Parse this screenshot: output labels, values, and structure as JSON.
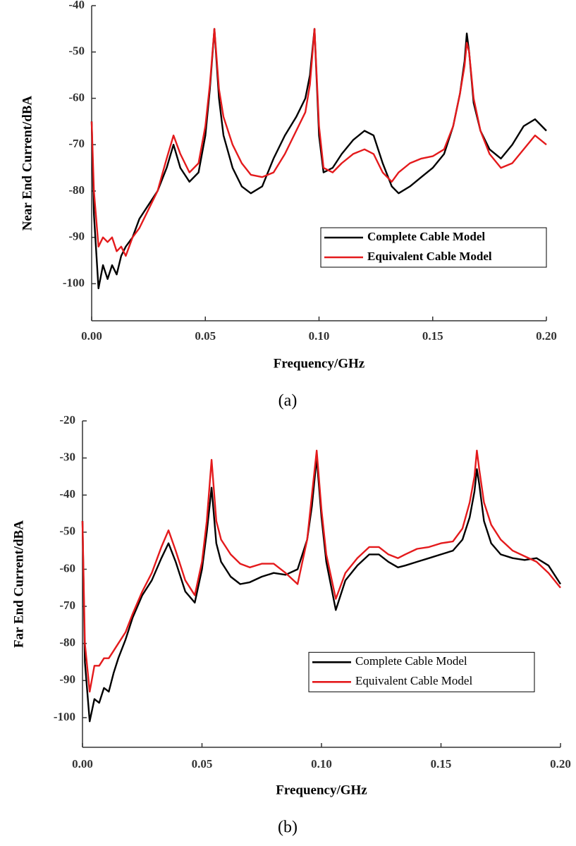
{
  "chart_data": [
    {
      "type": "line",
      "label": "(a)",
      "xlabel": "Frequency/GHz",
      "ylabel": "Near End Current/dBA",
      "x": [
        0,
        0.001,
        0.003,
        0.005,
        0.007,
        0.009,
        0.011,
        0.013,
        0.015,
        0.018,
        0.021,
        0.025,
        0.029,
        0.033,
        0.036,
        0.039,
        0.043,
        0.047,
        0.05,
        0.052,
        0.054,
        0.056,
        0.058,
        0.062,
        0.066,
        0.07,
        0.075,
        0.08,
        0.085,
        0.09,
        0.094,
        0.096,
        0.098,
        0.1,
        0.102,
        0.106,
        0.11,
        0.115,
        0.12,
        0.124,
        0.128,
        0.132,
        0.135,
        0.14,
        0.145,
        0.15,
        0.155,
        0.159,
        0.162,
        0.164,
        0.165,
        0.166,
        0.168,
        0.171,
        0.175,
        0.18,
        0.185,
        0.19,
        0.195,
        0.2
      ],
      "series": [
        {
          "name": "Complete Cable Model",
          "color": "#000000",
          "values": [
            -65,
            -85,
            -101,
            -96,
            -99,
            -96,
            -98,
            -94,
            -92,
            -90,
            -86,
            -83,
            -80,
            -75,
            -70,
            -75,
            -78,
            -76,
            -68,
            -58,
            -45,
            -60,
            -68,
            -75,
            -79,
            -80.5,
            -79,
            -73,
            -68,
            -64,
            -60,
            -55,
            -45,
            -68,
            -76,
            -75,
            -72,
            -69,
            -67,
            -68,
            -74,
            -79,
            -80.5,
            -79,
            -77,
            -75,
            -72,
            -66,
            -59,
            -52,
            -46,
            -50,
            -61,
            -67,
            -71,
            -73,
            -70,
            -66,
            -64.5,
            -67
          ]
        },
        {
          "name": "Equivalent Cable Model",
          "color": "#e41a1c",
          "values": [
            -65,
            -80,
            -92,
            -90,
            -91,
            -90,
            -93,
            -92,
            -94,
            -90,
            -88,
            -84,
            -80,
            -73,
            -68,
            -72,
            -76,
            -74,
            -66,
            -57,
            -45,
            -58,
            -64,
            -70,
            -74,
            -76.5,
            -77,
            -76,
            -72,
            -67,
            -63,
            -57,
            -45,
            -66,
            -75,
            -76,
            -74,
            -72,
            -71,
            -72,
            -76,
            -78,
            -76,
            -74,
            -73,
            -72.5,
            -71,
            -66,
            -59,
            -53,
            -48,
            -50,
            -60,
            -67,
            -72,
            -75,
            -74,
            -71,
            -68,
            -70
          ]
        }
      ],
      "xlim": [
        0,
        0.2
      ],
      "xticks": [
        {
          "value": 0,
          "label": "0.00"
        },
        0.05,
        {
          "value": 0.1,
          "label": "0.10"
        },
        0.15,
        {
          "value": 0.2,
          "label": "0.20"
        }
      ],
      "ylim": [
        -108,
        -40
      ],
      "yticks": [
        -40,
        -50,
        -60,
        -70,
        -80,
        -90,
        -100
      ],
      "legend": "lower right"
    },
    {
      "type": "line",
      "label": "(b)",
      "xlabel": "Frequency/GHz",
      "ylabel": "Far End Current/dBA",
      "x": [
        0,
        0.001,
        0.003,
        0.005,
        0.007,
        0.009,
        0.011,
        0.013,
        0.015,
        0.018,
        0.021,
        0.025,
        0.029,
        0.033,
        0.036,
        0.039,
        0.043,
        0.047,
        0.05,
        0.052,
        0.054,
        0.056,
        0.058,
        0.062,
        0.066,
        0.07,
        0.075,
        0.08,
        0.085,
        0.09,
        0.094,
        0.096,
        0.098,
        0.1,
        0.102,
        0.106,
        0.11,
        0.115,
        0.12,
        0.124,
        0.128,
        0.132,
        0.135,
        0.14,
        0.145,
        0.15,
        0.155,
        0.159,
        0.162,
        0.164,
        0.165,
        0.166,
        0.168,
        0.171,
        0.175,
        0.18,
        0.185,
        0.19,
        0.195,
        0.2
      ],
      "series": [
        {
          "name": "Complete Cable Model",
          "color": "#000000",
          "values": [
            -47,
            -85,
            -101,
            -95,
            -96,
            -92,
            -93,
            -88,
            -84,
            -79,
            -73,
            -67,
            -63,
            -57,
            -53,
            -58,
            -66,
            -69,
            -60,
            -50,
            -38,
            -53,
            -58,
            -62,
            -64,
            -63.5,
            -62,
            -61,
            -61.5,
            -60,
            -52,
            -43,
            -30,
            -46,
            -58,
            -71,
            -63,
            -59,
            -56,
            -56,
            -58,
            -59.5,
            -59,
            -58,
            -57,
            -56,
            -55,
            -52,
            -46,
            -39,
            -33,
            -37,
            -47,
            -53,
            -56,
            -57,
            -57.5,
            -57,
            -59,
            -64
          ]
        },
        {
          "name": "Equivalent Cable Model",
          "color": "#e41a1c",
          "values": [
            -47,
            -80,
            -93,
            -86,
            -86,
            -84,
            -84,
            -82,
            -80,
            -77,
            -72,
            -66,
            -61,
            -54,
            -49.5,
            -55,
            -63,
            -67,
            -58,
            -47,
            -30.5,
            -47,
            -52,
            -56,
            -58.5,
            -59.5,
            -58.5,
            -58.5,
            -61,
            -64,
            -52,
            -40,
            -28,
            -44,
            -56,
            -68,
            -61,
            -57,
            -54,
            -54,
            -56,
            -57,
            -56,
            -54.5,
            -54,
            -53,
            -52.5,
            -49,
            -42,
            -35,
            -28,
            -33,
            -42,
            -48,
            -52,
            -55,
            -56.5,
            -58,
            -61,
            -65
          ]
        }
      ],
      "xlim": [
        0,
        0.2
      ],
      "xticks": [
        {
          "value": 0,
          "label": "0.00"
        },
        0.05,
        {
          "value": 0.1,
          "label": "0.10"
        },
        0.15,
        {
          "value": 0.2,
          "label": "0.20"
        }
      ],
      "ylim": [
        -108,
        -20
      ],
      "yticks": [
        -20,
        -30,
        -40,
        -50,
        -60,
        -70,
        -80,
        -90,
        -100
      ],
      "legend": "lower right"
    }
  ]
}
